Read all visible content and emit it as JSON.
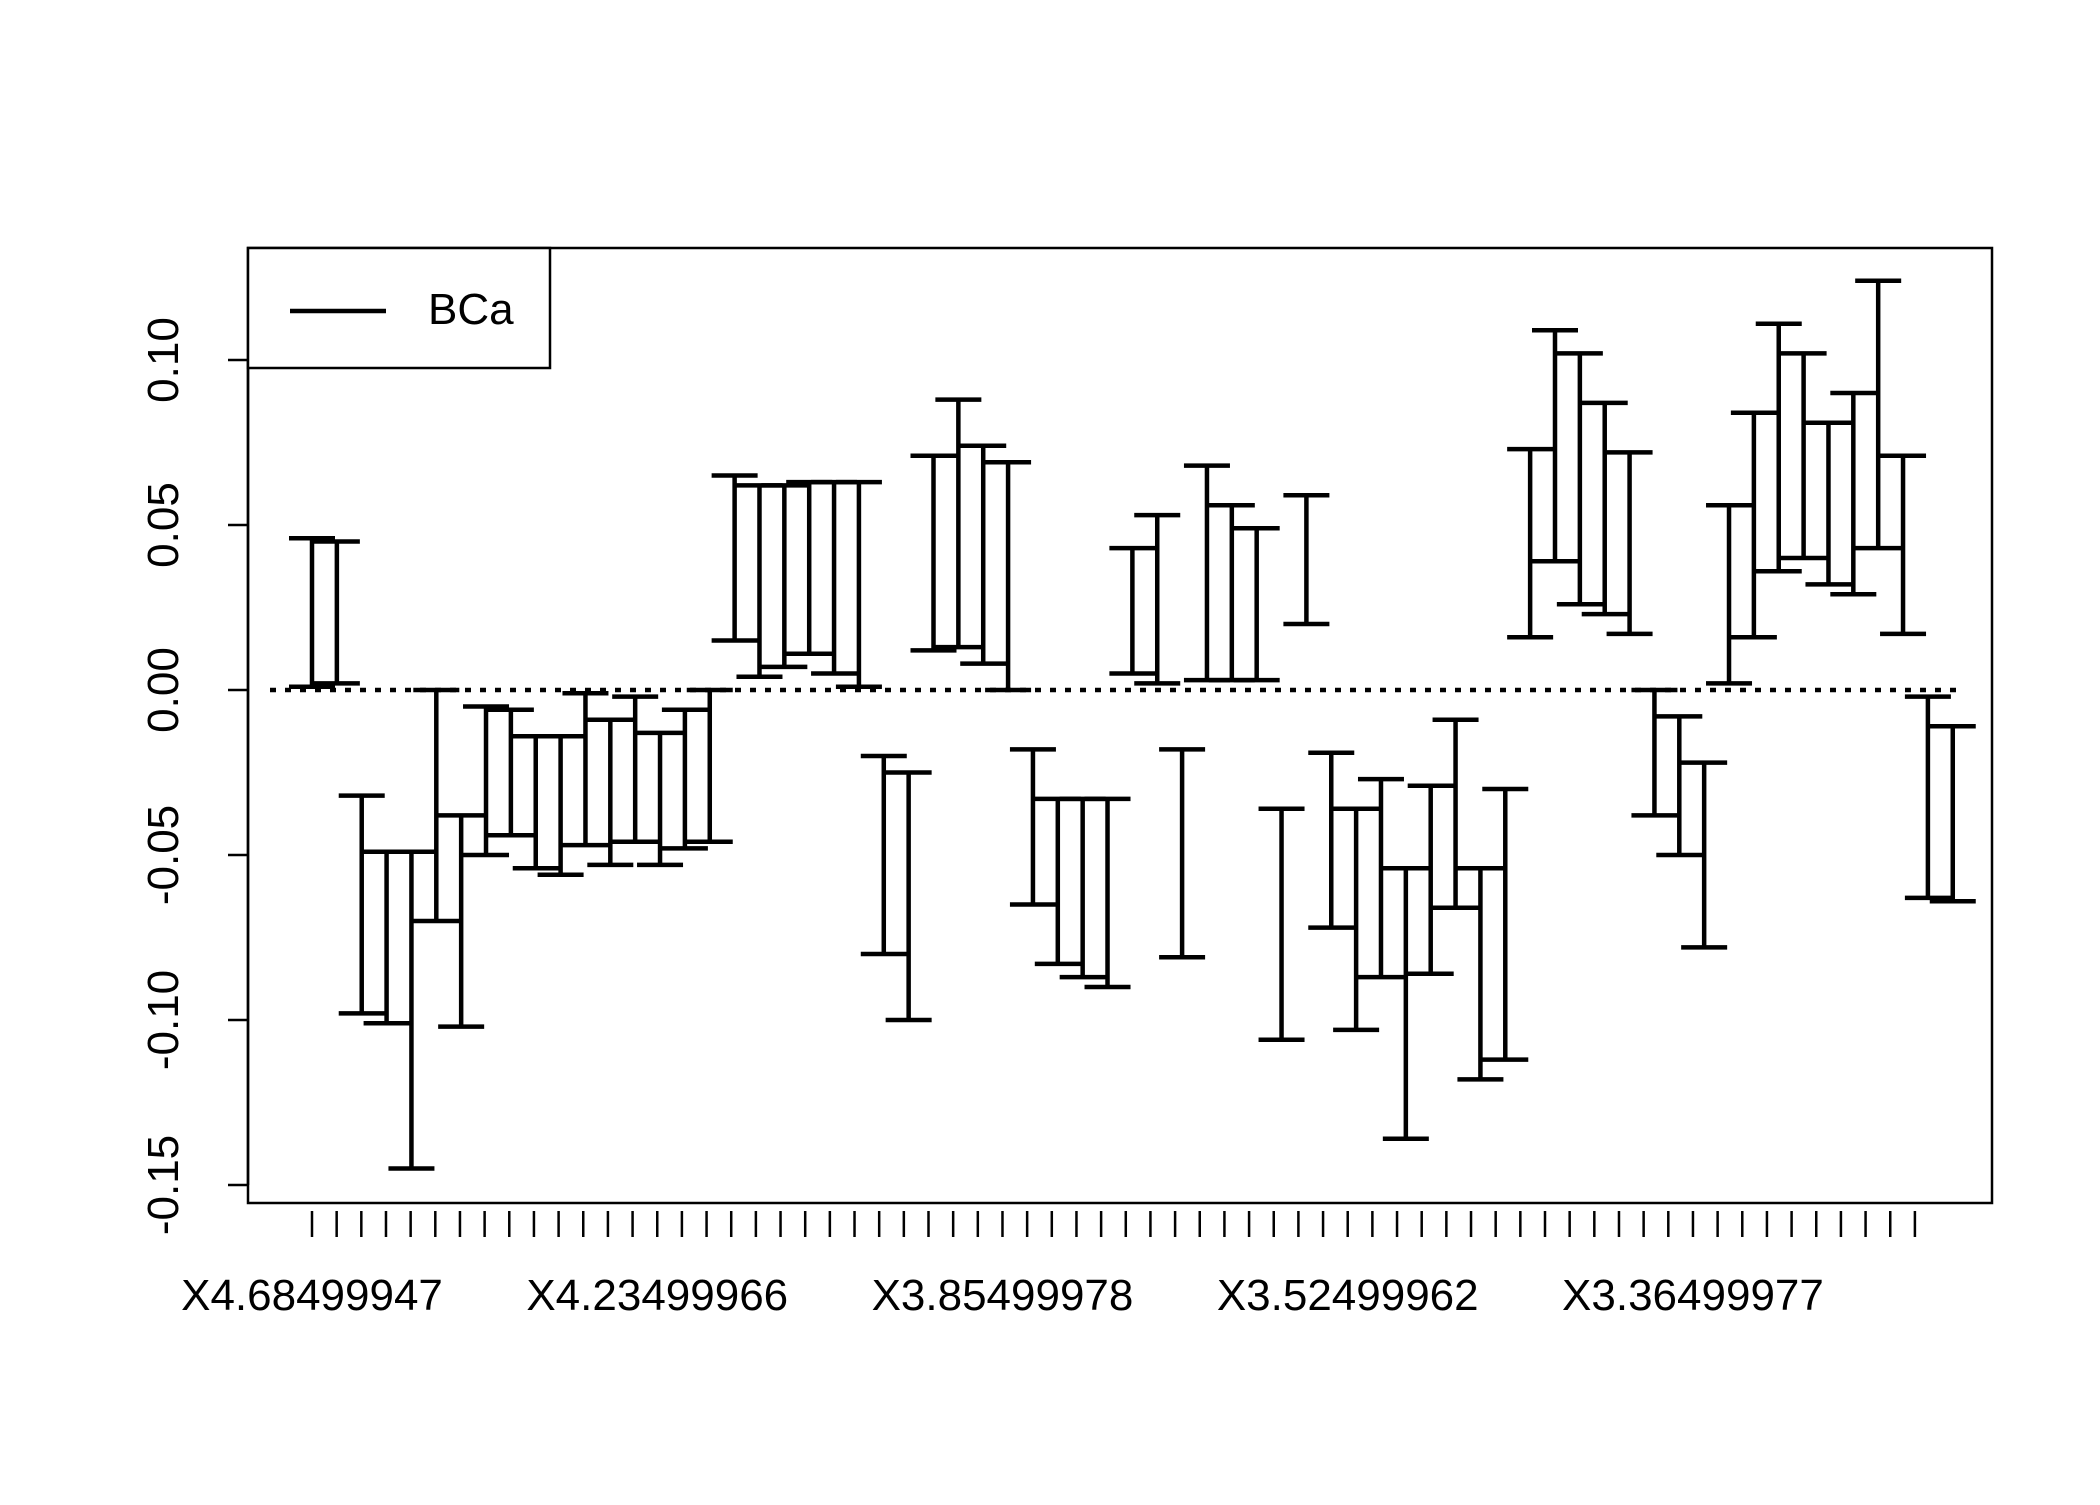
{
  "chart_data": {
    "type": "errorbar",
    "title": "",
    "xlabel": "",
    "ylabel": "",
    "ylim": [
      -0.155,
      0.135
    ],
    "y_ticks": [
      -0.15,
      -0.1,
      -0.05,
      0.0,
      0.05,
      0.1
    ],
    "y_tick_labels": [
      "-0.15",
      "-0.10",
      "-0.05",
      "0.00",
      "0.05",
      "0.10"
    ],
    "x_labeled_ticks": [
      {
        "position": 1,
        "label": "X4.68499947"
      },
      {
        "position": 15,
        "label": "X4.23499966"
      },
      {
        "position": 29,
        "label": "X3.85499978"
      },
      {
        "position": 43,
        "label": "X3.52499962"
      },
      {
        "position": 57,
        "label": "X3.36499977"
      }
    ],
    "x_tick_count": 66,
    "reference_line": {
      "y": 0.0,
      "style": "dotted"
    },
    "legend": {
      "position": "top-left",
      "entries": [
        {
          "label": "BCa"
        }
      ]
    },
    "grid": false,
    "series": [
      {
        "intervals": [
          {
            "x": 1,
            "lower": 0.001,
            "upper": 0.046
          },
          {
            "x": 2,
            "lower": 0.002,
            "upper": 0.045
          },
          {
            "x": 3,
            "lower": -0.098,
            "upper": -0.032
          },
          {
            "x": 4,
            "lower": -0.101,
            "upper": -0.049
          },
          {
            "x": 5,
            "lower": -0.145,
            "upper": -0.049
          },
          {
            "x": 6,
            "lower": -0.07,
            "upper": 0.0
          },
          {
            "x": 7,
            "lower": -0.102,
            "upper": -0.038
          },
          {
            "x": 8,
            "lower": -0.05,
            "upper": -0.005
          },
          {
            "x": 9,
            "lower": -0.044,
            "upper": -0.006
          },
          {
            "x": 10,
            "lower": -0.054,
            "upper": -0.014
          },
          {
            "x": 11,
            "lower": -0.056,
            "upper": -0.014
          },
          {
            "x": 12,
            "lower": -0.047,
            "upper": -0.001
          },
          {
            "x": 13,
            "lower": -0.053,
            "upper": -0.009
          },
          {
            "x": 14,
            "lower": -0.046,
            "upper": -0.002
          },
          {
            "x": 15,
            "lower": -0.053,
            "upper": -0.013
          },
          {
            "x": 16,
            "lower": -0.048,
            "upper": -0.006
          },
          {
            "x": 17,
            "lower": -0.046,
            "upper": 0.0
          },
          {
            "x": 18,
            "lower": 0.015,
            "upper": 0.065
          },
          {
            "x": 19,
            "lower": 0.004,
            "upper": 0.062
          },
          {
            "x": 20,
            "lower": 0.007,
            "upper": 0.062
          },
          {
            "x": 21,
            "lower": 0.011,
            "upper": 0.063
          },
          {
            "x": 22,
            "lower": 0.005,
            "upper": 0.063
          },
          {
            "x": 23,
            "lower": 0.001,
            "upper": 0.063
          },
          {
            "x": 24,
            "lower": -0.08,
            "upper": -0.02
          },
          {
            "x": 25,
            "lower": -0.1,
            "upper": -0.025
          },
          {
            "x": 26,
            "lower": 0.012,
            "upper": 0.071
          },
          {
            "x": 27,
            "lower": 0.013,
            "upper": 0.088
          },
          {
            "x": 28,
            "lower": 0.008,
            "upper": 0.074
          },
          {
            "x": 29,
            "lower": 0.0,
            "upper": 0.069
          },
          {
            "x": 30,
            "lower": -0.065,
            "upper": -0.018
          },
          {
            "x": 31,
            "lower": -0.083,
            "upper": -0.033
          },
          {
            "x": 32,
            "lower": -0.087,
            "upper": -0.033
          },
          {
            "x": 33,
            "lower": -0.09,
            "upper": -0.033
          },
          {
            "x": 34,
            "lower": 0.005,
            "upper": 0.043
          },
          {
            "x": 35,
            "lower": 0.002,
            "upper": 0.053
          },
          {
            "x": 36,
            "lower": -0.081,
            "upper": -0.018
          },
          {
            "x": 37,
            "lower": 0.003,
            "upper": 0.068
          },
          {
            "x": 38,
            "lower": 0.003,
            "upper": 0.056
          },
          {
            "x": 39,
            "lower": 0.003,
            "upper": 0.049
          },
          {
            "x": 40,
            "lower": -0.106,
            "upper": -0.036
          },
          {
            "x": 41,
            "lower": 0.02,
            "upper": 0.059
          },
          {
            "x": 42,
            "lower": -0.072,
            "upper": -0.019
          },
          {
            "x": 43,
            "lower": -0.103,
            "upper": -0.036
          },
          {
            "x": 44,
            "lower": -0.087,
            "upper": -0.027
          },
          {
            "x": 45,
            "lower": -0.136,
            "upper": -0.054
          },
          {
            "x": 46,
            "lower": -0.086,
            "upper": -0.029
          },
          {
            "x": 47,
            "lower": -0.066,
            "upper": -0.009
          },
          {
            "x": 48,
            "lower": -0.118,
            "upper": -0.054
          },
          {
            "x": 49,
            "lower": -0.112,
            "upper": -0.03
          },
          {
            "x": 50,
            "lower": 0.016,
            "upper": 0.073
          },
          {
            "x": 51,
            "lower": 0.039,
            "upper": 0.109
          },
          {
            "x": 52,
            "lower": 0.026,
            "upper": 0.102
          },
          {
            "x": 53,
            "lower": 0.023,
            "upper": 0.087
          },
          {
            "x": 54,
            "lower": 0.017,
            "upper": 0.072
          },
          {
            "x": 55,
            "lower": -0.038,
            "upper": 0.0
          },
          {
            "x": 56,
            "lower": -0.05,
            "upper": -0.008
          },
          {
            "x": 57,
            "lower": -0.078,
            "upper": -0.022
          },
          {
            "x": 58,
            "lower": 0.002,
            "upper": 0.056
          },
          {
            "x": 59,
            "lower": 0.016,
            "upper": 0.084
          },
          {
            "x": 60,
            "lower": 0.036,
            "upper": 0.111
          },
          {
            "x": 61,
            "lower": 0.04,
            "upper": 0.102
          },
          {
            "x": 62,
            "lower": 0.032,
            "upper": 0.081
          },
          {
            "x": 63,
            "lower": 0.029,
            "upper": 0.09
          },
          {
            "x": 64,
            "lower": 0.043,
            "upper": 0.124
          },
          {
            "x": 65,
            "lower": 0.017,
            "upper": 0.071
          },
          {
            "x": 66,
            "lower": -0.063,
            "upper": -0.002
          },
          {
            "x": 67,
            "lower": -0.064,
            "upper": -0.011
          }
        ]
      }
    ]
  },
  "colors": {
    "ink": "#000000",
    "background": "#ffffff"
  }
}
